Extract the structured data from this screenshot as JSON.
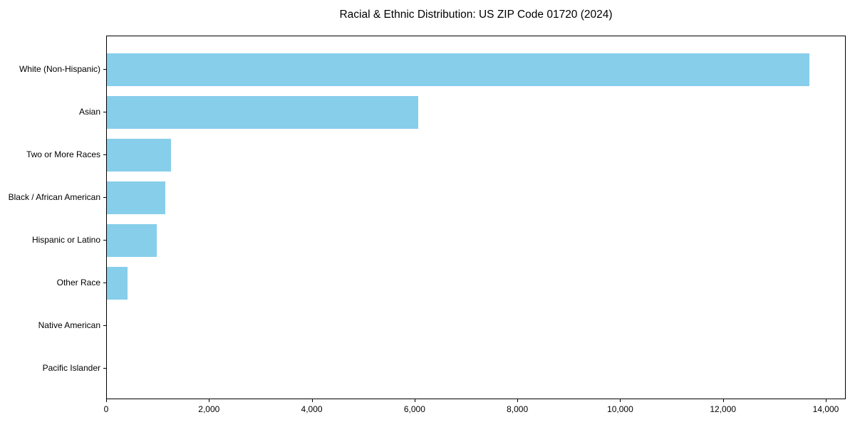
{
  "chart_data": {
    "type": "bar",
    "orientation": "horizontal",
    "title": "Racial & Ethnic Distribution: US ZIP Code 01720 (2024)",
    "categories": [
      "White (Non-Hispanic)",
      "Asian",
      "Two or More Races",
      "Black / African American",
      "Hispanic or Latino",
      "Other Race",
      "Native American",
      "Pacific Islander"
    ],
    "values": [
      13690,
      6070,
      1250,
      1140,
      970,
      400,
      0,
      0
    ],
    "xlabel": "",
    "ylabel": "",
    "xlim": [
      0,
      14388
    ],
    "xticks": [
      0,
      2000,
      4000,
      6000,
      8000,
      10000,
      12000,
      14000
    ],
    "xtick_labels": [
      "0",
      "2,000",
      "4,000",
      "6,000",
      "8,000",
      "10,000",
      "12,000",
      "14,000"
    ],
    "bar_color": "#87CEEB",
    "spine_color": "#000000",
    "text_color": "#000000",
    "background_color": "#ffffff",
    "grid": false,
    "legend_position": "none"
  }
}
